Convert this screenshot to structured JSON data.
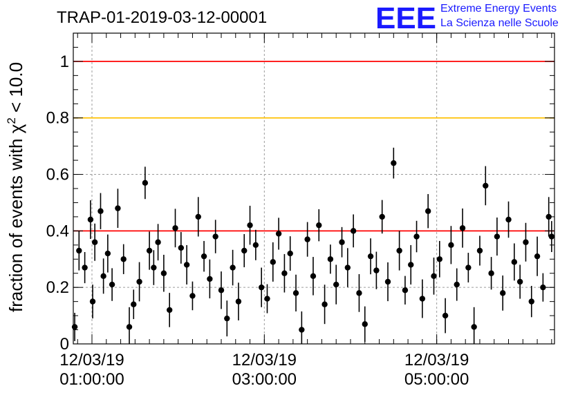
{
  "logo": {
    "mark": "EEE",
    "line1": "Extreme Energy Events",
    "line2": "La Scienza nelle Scuole"
  },
  "colors": {
    "threshold_high": "#ff0000",
    "threshold_warn": "#ffc000",
    "threshold_low": "#ff0000",
    "points": "#000000",
    "grid": "#9a9a9a"
  },
  "chart_data": {
    "type": "scatter",
    "title": "TRAP-01-2019-03-12-00001",
    "ylabel": "fraction of events with",
    "ylabel_symbol": "χ",
    "ylabel_exponent": "2",
    "ylabel_tail": "< 10.0",
    "ylim": [
      0,
      1.1
    ],
    "xlim": [
      "00:47:00",
      "06:22:00"
    ],
    "xaxis_date": "12/03/19",
    "xticks": [
      {
        "date": "12/03/19",
        "time": "01:00:00"
      },
      {
        "date": "12/03/19",
        "time": "03:00:00"
      },
      {
        "date": "12/03/19",
        "time": "05:00:00"
      }
    ],
    "yticks": [
      "0",
      "0.2",
      "0.4",
      "0.6",
      "0.8",
      "1"
    ],
    "grid": true,
    "reference_lines": [
      {
        "y": 1.0,
        "color": "red"
      },
      {
        "y": 0.8,
        "color": "orange"
      },
      {
        "y": 0.4,
        "color": "red"
      }
    ],
    "series": [
      {
        "marker": "filled-circle",
        "error_bars": true,
        "x": [
          "00:48:00",
          "00:51:00",
          "00:55:00",
          "00:59:00",
          "01:00:30",
          "01:02:00",
          "01:06:00",
          "01:08:00",
          "01:11:00",
          "01:14:00",
          "01:18:00",
          "01:22:00",
          "01:26:00",
          "01:29:00",
          "01:33:00",
          "01:37:00",
          "01:40:00",
          "01:43:00",
          "01:46:00",
          "01:50:00",
          "01:54:00",
          "01:58:00",
          "02:02:00",
          "02:06:00",
          "02:10:00",
          "02:14:00",
          "02:18:00",
          "02:22:00",
          "02:26:00",
          "02:30:00",
          "02:34:00",
          "02:38:00",
          "02:42:00",
          "02:46:00",
          "02:50:00",
          "02:54:00",
          "02:58:00",
          "03:02:00",
          "03:06:00",
          "03:10:00",
          "03:14:00",
          "03:18:00",
          "03:22:00",
          "03:26:00",
          "03:30:00",
          "03:34:00",
          "03:38:00",
          "03:42:00",
          "03:46:00",
          "03:50:00",
          "03:54:00",
          "03:58:00",
          "04:02:00",
          "04:06:00",
          "04:10:00",
          "04:14:00",
          "04:18:00",
          "04:22:00",
          "04:26:00",
          "04:30:00",
          "04:34:00",
          "04:38:00",
          "04:42:00",
          "04:46:00",
          "04:50:00",
          "04:54:00",
          "04:58:00",
          "05:02:00",
          "05:06:00",
          "05:10:00",
          "05:14:00",
          "05:18:00",
          "05:22:00",
          "05:26:00",
          "05:30:00",
          "05:34:00",
          "05:38:00",
          "05:42:00",
          "05:46:00",
          "05:50:00",
          "05:54:00",
          "05:58:00",
          "06:02:00",
          "06:06:00",
          "06:10:00",
          "06:14:00",
          "06:18:00",
          "06:20:00"
        ],
        "y": [
          0.06,
          0.33,
          0.27,
          0.44,
          0.15,
          0.36,
          0.47,
          0.24,
          0.32,
          0.21,
          0.48,
          0.3,
          0.06,
          0.14,
          0.22,
          0.57,
          0.33,
          0.27,
          0.36,
          0.25,
          0.12,
          0.41,
          0.34,
          0.28,
          0.17,
          0.45,
          0.31,
          0.23,
          0.38,
          0.19,
          0.09,
          0.27,
          0.15,
          0.33,
          0.42,
          0.35,
          0.2,
          0.16,
          0.29,
          0.39,
          0.25,
          0.32,
          0.18,
          0.05,
          0.37,
          0.24,
          0.42,
          0.14,
          0.3,
          0.21,
          0.36,
          0.27,
          0.4,
          0.18,
          0.07,
          0.31,
          0.26,
          0.45,
          0.22,
          0.64,
          0.33,
          0.19,
          0.28,
          0.38,
          0.16,
          0.47,
          0.24,
          0.3,
          0.1,
          0.35,
          0.21,
          0.41,
          0.27,
          0.06,
          0.33,
          0.56,
          0.25,
          0.38,
          0.18,
          0.44,
          0.29,
          0.22,
          0.36,
          0.15,
          0.31,
          0.2,
          0.45,
          0.38
        ]
      }
    ]
  }
}
